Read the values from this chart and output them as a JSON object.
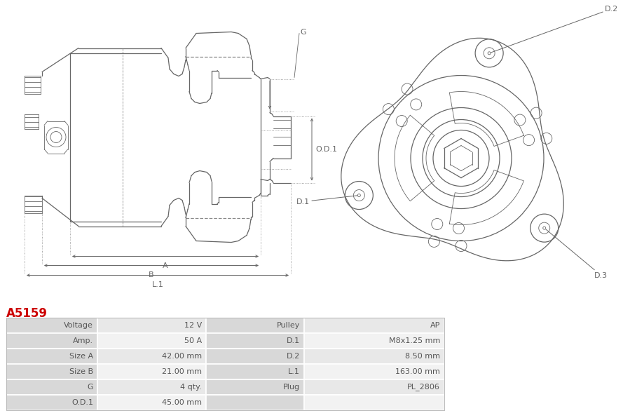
{
  "title": "A5159",
  "title_color": "#cc0000",
  "bg_color": "#ffffff",
  "table_rows": [
    [
      "Voltage",
      "12 V",
      "Pulley",
      "AP"
    ],
    [
      "Amp.",
      "50 A",
      "D.1",
      "M8x1.25 mm"
    ],
    [
      "Size A",
      "42.00 mm",
      "D.2",
      "8.50 mm"
    ],
    [
      "Size B",
      "21.00 mm",
      "L.1",
      "163.00 mm"
    ],
    [
      "G",
      "4 qty.",
      "Plug",
      "PL_2806"
    ],
    [
      "O.D.1",
      "45.00 mm",
      "",
      ""
    ]
  ],
  "line_color": "#666666",
  "dim_color": "#666666",
  "table_label_bg": "#d8d8d8",
  "table_val_bg1": "#e8e8e8",
  "table_val_bg2": "#f2f2f2",
  "table_border": "#cccccc"
}
